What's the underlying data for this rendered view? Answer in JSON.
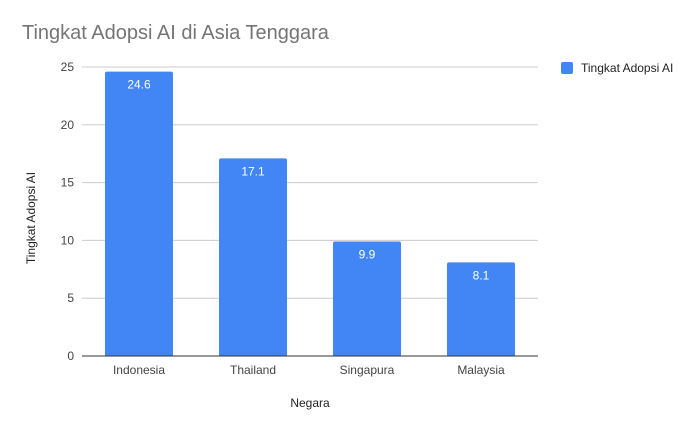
{
  "colors": {
    "bar": "#4285f4",
    "grid": "#cccccc",
    "axis": "#333333",
    "title": "#757575",
    "text": "#444444",
    "bar_label": "#ffffff"
  },
  "chart_data": {
    "type": "bar",
    "title": "Tingkat Adopsi AI di Asia Tenggara",
    "xlabel": "Negara",
    "ylabel": "Tingkat Adopsi AI",
    "categories": [
      "Indonesia",
      "Thailand",
      "Singapura",
      "Malaysia"
    ],
    "series": [
      {
        "name": "Tingkat Adopsi AI",
        "values": [
          24.6,
          17.1,
          9.9,
          8.1
        ]
      }
    ],
    "ylim": [
      0,
      25
    ],
    "yticks": [
      0,
      5,
      10,
      15,
      20,
      25
    ],
    "grid": true,
    "legend": "right"
  }
}
